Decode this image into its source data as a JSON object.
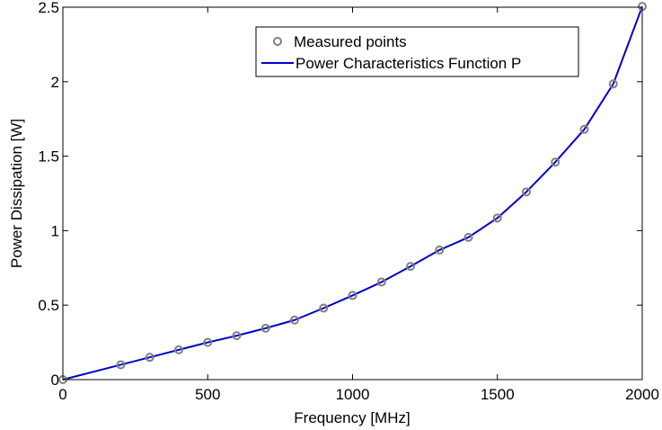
{
  "chart_data": {
    "type": "line",
    "title": "",
    "xlabel": "Frequency [MHz]",
    "ylabel": "Power Dissipation [W]",
    "xlim": [
      0,
      2000
    ],
    "ylim": [
      0,
      2.5
    ],
    "xticks": [
      0,
      500,
      1000,
      1500,
      2000
    ],
    "xtick_labels": [
      "0",
      "500",
      "1000",
      "1500",
      "2000"
    ],
    "yticks": [
      0,
      0.5,
      1,
      1.5,
      2,
      2.5
    ],
    "ytick_labels": [
      "0",
      "0.5",
      "1",
      "1.5",
      "2",
      "2.5"
    ],
    "grid": false,
    "legend_position": "top-right",
    "series": [
      {
        "name": "Measured points",
        "kind": "markers",
        "marker": "circle",
        "color": "#808080",
        "x": [
          0,
          200,
          300,
          400,
          500,
          600,
          700,
          800,
          900,
          1000,
          1100,
          1200,
          1300,
          1400,
          1500,
          1600,
          1700,
          1800,
          1900,
          2000
        ],
        "y": [
          0.0,
          0.1,
          0.15,
          0.2,
          0.25,
          0.295,
          0.345,
          0.4,
          0.48,
          0.565,
          0.655,
          0.76,
          0.87,
          0.955,
          1.085,
          1.26,
          1.46,
          1.68,
          1.985,
          2.505
        ]
      },
      {
        "name": "Power Characteristics Function P",
        "kind": "line",
        "color": "#0000cc",
        "x": [
          0,
          200,
          300,
          400,
          500,
          600,
          700,
          800,
          900,
          1000,
          1100,
          1200,
          1300,
          1400,
          1500,
          1600,
          1700,
          1800,
          1900,
          2000
        ],
        "y": [
          0.0,
          0.1,
          0.15,
          0.2,
          0.25,
          0.295,
          0.345,
          0.4,
          0.48,
          0.565,
          0.655,
          0.76,
          0.87,
          0.955,
          1.085,
          1.26,
          1.46,
          1.68,
          1.985,
          2.505
        ]
      }
    ]
  }
}
